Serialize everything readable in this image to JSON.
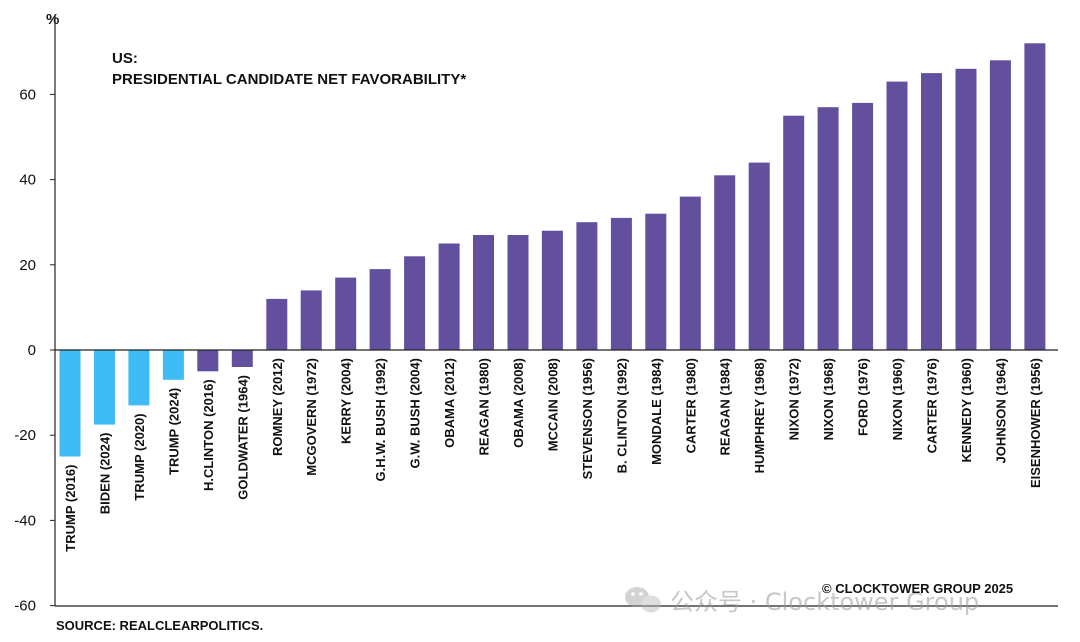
{
  "chart_data": {
    "type": "bar",
    "title_line1": "US:",
    "title_line2": "PRESIDENTIAL CANDIDATE NET FAVORABILITY*",
    "unit_label": "%",
    "ylim": [
      -60,
      75
    ],
    "yticks": [
      60,
      40,
      20,
      0,
      -20,
      -40,
      -60
    ],
    "grid": false,
    "categories": [
      "TRUMP (2016)",
      "BIDEN (2024)",
      "TRUMP (2020)",
      "TRUMP (2024)",
      "H.CLINTON (2016)",
      "GOLDWATER (1964)",
      "ROMNEY (2012)",
      "MCGOVERN (1972)",
      "KERRY (2004)",
      "G.H.W. BUSH (1992)",
      "G.W. BUSH (2004)",
      "OBAMA (2012)",
      "REAGAN (1980)",
      "OBAMA (2008)",
      "MCCAIN (2008)",
      "STEVENSON (1956)",
      "B. CLINTON (1992)",
      "MONDALE (1984)",
      "CARTER (1980)",
      "REAGAN (1984)",
      "HUMPHREY (1968)",
      "NIXON (1972)",
      "NIXON (1968)",
      "FORD (1976)",
      "NIXON (1960)",
      "CARTER (1976)",
      "KENNEDY (1960)",
      "JOHNSON (1964)",
      "EISENHOWER (1956)"
    ],
    "values": [
      -25,
      -17.5,
      -13,
      -7,
      -5,
      -4,
      12,
      14,
      17,
      19,
      22,
      25,
      27,
      27,
      28,
      30,
      31,
      32,
      36,
      41,
      44,
      55,
      57,
      58,
      63,
      65,
      66,
      68,
      72
    ],
    "colors": {
      "highlight": "#3fbcf5",
      "default": "#62509f",
      "axis": "#222222"
    },
    "highlight_count": 4
  },
  "source": "SOURCE: REALCLEARPOLITICS.",
  "copyright": "© CLOCKTOWER GROUP 2025",
  "watermark": "公众号 · Clocktower Group"
}
